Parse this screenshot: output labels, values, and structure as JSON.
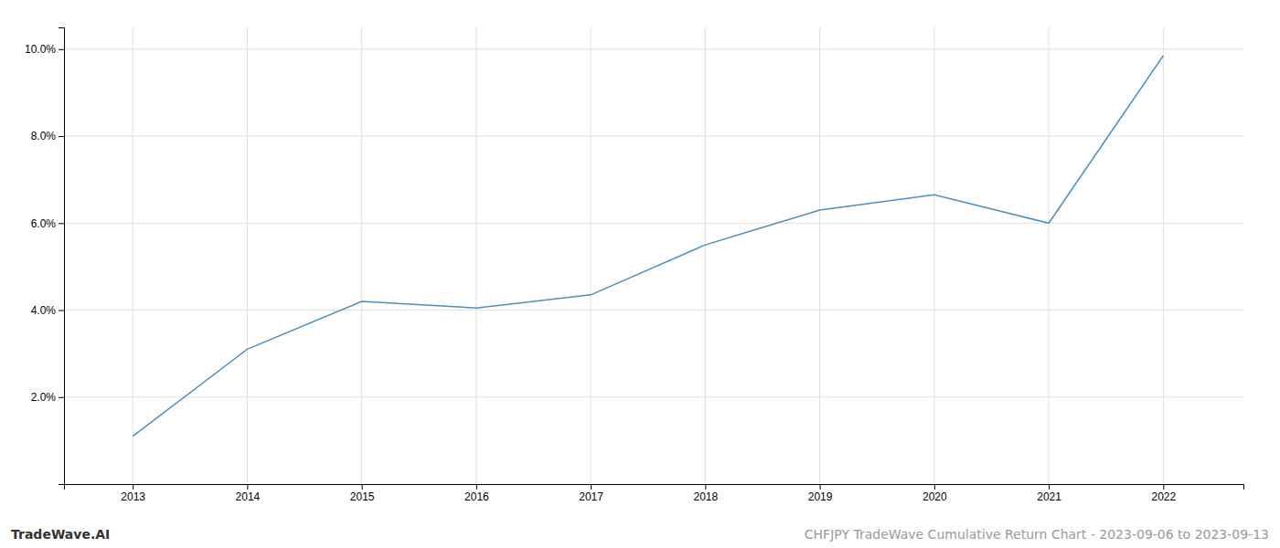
{
  "chart_data": {
    "type": "line",
    "x": [
      2013,
      2014,
      2015,
      2016,
      2017,
      2018,
      2019,
      2020,
      2021,
      2022
    ],
    "values": [
      1.1,
      3.1,
      4.2,
      4.05,
      4.35,
      5.5,
      6.3,
      6.65,
      6.0,
      9.85
    ],
    "color": "#4d8fbf",
    "xlim": [
      2012.4,
      2022.7
    ],
    "xticks": [
      2013,
      2014,
      2015,
      2016,
      2017,
      2018,
      2019,
      2020,
      2021,
      2022
    ],
    "ylim": [
      0.0,
      10.5
    ],
    "yticks": [
      {
        "value": 2.0,
        "label": "2.0%"
      },
      {
        "value": 4.0,
        "label": "4.0%"
      },
      {
        "value": 6.0,
        "label": "6.0%"
      },
      {
        "value": 8.0,
        "label": "8.0%"
      },
      {
        "value": 10.0,
        "label": "10.0%"
      }
    ],
    "grid": true,
    "annotations": [
      "TradeWave.AI",
      "CHFJPY TradeWave Cumulative Return Chart - 2023-09-06 to 2023-09-13"
    ]
  }
}
